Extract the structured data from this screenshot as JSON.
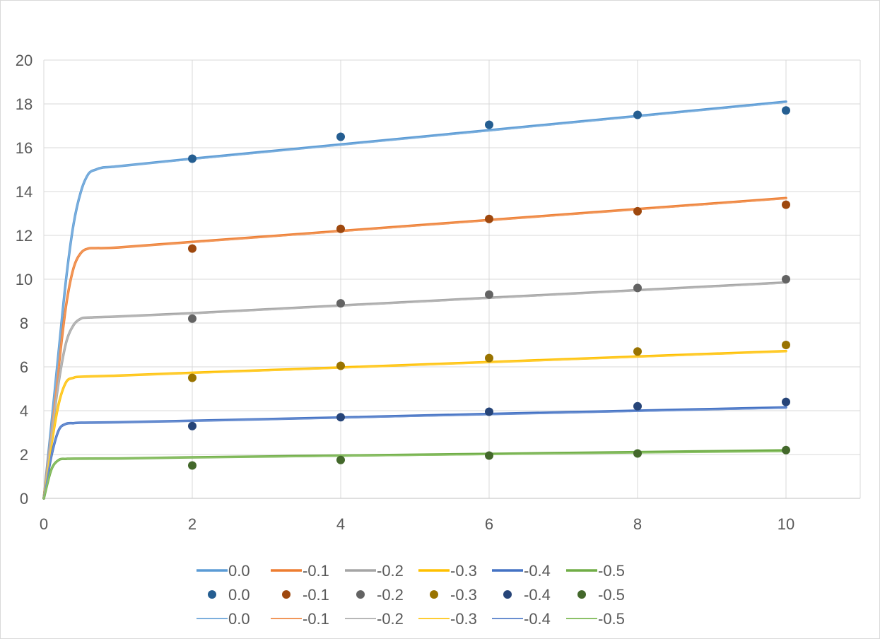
{
  "chart_data": {
    "type": "line",
    "title": "",
    "xlabel": "",
    "ylabel": "",
    "xlim": [
      0,
      11
    ],
    "ylim": [
      0,
      20
    ],
    "x_ticks": [
      0,
      2,
      4,
      6,
      8,
      10
    ],
    "y_ticks": [
      0,
      2,
      4,
      6,
      8,
      10,
      12,
      14,
      16,
      18,
      20
    ],
    "x_tick_labels": [
      "0",
      "2",
      "4",
      "6",
      "8",
      "10"
    ],
    "y_tick_labels": [
      "0",
      "2",
      "4",
      "6",
      "8",
      "10",
      "12",
      "14",
      "16",
      "18",
      "20"
    ],
    "grid": true,
    "legend_placement": "bottom",
    "series": [
      {
        "name": "0.0",
        "kind": "thick-line",
        "color": "#5B9BD5",
        "x": [
          0,
          0.1,
          0.2,
          0.3,
          0.4,
          0.5,
          0.6,
          0.7,
          0.8,
          1,
          2,
          4,
          6,
          8,
          10
        ],
        "y": [
          0,
          3.3,
          6.7,
          10.0,
          12.5,
          14.0,
          14.8,
          15.0,
          15.1,
          15.15,
          15.5,
          16.15,
          16.8,
          17.45,
          18.1
        ]
      },
      {
        "name": "-0.1",
        "kind": "thick-line",
        "color": "#ED7D31",
        "x": [
          0,
          0.1,
          0.2,
          0.3,
          0.4,
          0.5,
          0.6,
          0.7,
          1,
          2,
          4,
          6,
          8,
          10
        ],
        "y": [
          0,
          3.0,
          6.0,
          8.8,
          10.5,
          11.2,
          11.4,
          11.42,
          11.45,
          11.7,
          12.2,
          12.7,
          13.2,
          13.7
        ]
      },
      {
        "name": "-0.2",
        "kind": "thick-line",
        "color": "#A5A5A5",
        "x": [
          0,
          0.1,
          0.2,
          0.3,
          0.4,
          0.5,
          0.6,
          1,
          2,
          4,
          6,
          8,
          10
        ],
        "y": [
          0,
          2.8,
          5.3,
          7.1,
          7.9,
          8.2,
          8.25,
          8.3,
          8.45,
          8.8,
          9.15,
          9.5,
          9.85
        ]
      },
      {
        "name": "-0.3",
        "kind": "thick-line",
        "color": "#FFC000",
        "x": [
          0,
          0.1,
          0.2,
          0.3,
          0.4,
          0.5,
          1,
          2,
          4,
          6,
          8,
          10
        ],
        "y": [
          0,
          2.4,
          4.3,
          5.3,
          5.5,
          5.55,
          5.6,
          5.73,
          5.97,
          6.22,
          6.47,
          6.72
        ]
      },
      {
        "name": "-0.4",
        "kind": "thick-line",
        "color": "#4472C4",
        "x": [
          0,
          0.1,
          0.2,
          0.3,
          0.4,
          0.5,
          1,
          2,
          4,
          6,
          8,
          10
        ],
        "y": [
          0,
          1.9,
          3.1,
          3.4,
          3.43,
          3.45,
          3.47,
          3.54,
          3.69,
          3.85,
          4.0,
          4.15
        ]
      },
      {
        "name": "-0.5",
        "kind": "thick-line",
        "color": "#70AD47",
        "x": [
          0,
          0.1,
          0.2,
          0.3,
          0.4,
          1,
          2,
          4,
          6,
          8,
          10
        ],
        "y": [
          0,
          1.3,
          1.75,
          1.8,
          1.81,
          1.82,
          1.87,
          1.95,
          2.03,
          2.11,
          2.19
        ]
      },
      {
        "name": "0.0",
        "kind": "scatter",
        "color": "#255E91",
        "x": [
          2,
          4,
          6,
          8,
          10
        ],
        "y": [
          15.5,
          16.5,
          17.05,
          17.5,
          17.7
        ]
      },
      {
        "name": "-0.1",
        "kind": "scatter",
        "color": "#9E480E",
        "x": [
          2,
          4,
          6,
          8,
          10
        ],
        "y": [
          11.4,
          12.3,
          12.75,
          13.1,
          13.4
        ]
      },
      {
        "name": "-0.2",
        "kind": "scatter",
        "color": "#636363",
        "x": [
          2,
          4,
          6,
          8,
          10
        ],
        "y": [
          8.2,
          8.9,
          9.3,
          9.6,
          10.0
        ]
      },
      {
        "name": "-0.3",
        "kind": "scatter",
        "color": "#997300",
        "x": [
          2,
          4,
          6,
          8,
          10
        ],
        "y": [
          5.5,
          6.05,
          6.4,
          6.7,
          7.0
        ]
      },
      {
        "name": "-0.4",
        "kind": "scatter",
        "color": "#264478",
        "x": [
          2,
          4,
          6,
          8,
          10
        ],
        "y": [
          3.3,
          3.7,
          3.95,
          4.2,
          4.4
        ]
      },
      {
        "name": "-0.5",
        "kind": "scatter",
        "color": "#43682B",
        "x": [
          2,
          4,
          6,
          8,
          10
        ],
        "y": [
          1.5,
          1.75,
          1.95,
          2.05,
          2.2
        ]
      },
      {
        "name": "0.0",
        "kind": "thin-line",
        "color": "#7CAFDD",
        "x": [
          0,
          0.1,
          0.2,
          0.3,
          0.4,
          0.5,
          0.6,
          0.7,
          0.8,
          1,
          2,
          4,
          6,
          8,
          10
        ],
        "y": [
          0,
          3.3,
          6.7,
          10.0,
          12.5,
          14.0,
          14.8,
          15.0,
          15.1,
          15.15,
          15.47,
          16.12,
          16.77,
          17.42,
          18.07
        ]
      },
      {
        "name": "-0.1",
        "kind": "thin-line",
        "color": "#F1975A",
        "x": [
          0,
          0.1,
          0.2,
          0.3,
          0.4,
          0.5,
          0.6,
          0.7,
          1,
          2,
          4,
          6,
          8,
          10
        ],
        "y": [
          0,
          3.0,
          6.0,
          8.8,
          10.5,
          11.2,
          11.4,
          11.42,
          11.45,
          11.68,
          12.18,
          12.68,
          13.18,
          13.68
        ]
      },
      {
        "name": "-0.2",
        "kind": "thin-line",
        "color": "#B7B7B7",
        "x": [
          0,
          0.1,
          0.2,
          0.3,
          0.4,
          0.5,
          0.6,
          1,
          2,
          4,
          6,
          8,
          10
        ],
        "y": [
          0,
          2.8,
          5.3,
          7.1,
          7.9,
          8.2,
          8.25,
          8.3,
          8.43,
          8.78,
          9.13,
          9.48,
          9.83
        ]
      },
      {
        "name": "-0.3",
        "kind": "thin-line",
        "color": "#FFCD33",
        "x": [
          0,
          0.1,
          0.2,
          0.3,
          0.4,
          0.5,
          1,
          2,
          4,
          6,
          8,
          10
        ],
        "y": [
          0,
          2.4,
          4.3,
          5.3,
          5.5,
          5.55,
          5.6,
          5.71,
          5.95,
          6.2,
          6.45,
          6.7
        ]
      },
      {
        "name": "-0.4",
        "kind": "thin-line",
        "color": "#698ED0",
        "x": [
          0,
          0.1,
          0.2,
          0.3,
          0.4,
          0.5,
          1,
          2,
          4,
          6,
          8,
          10
        ],
        "y": [
          0,
          1.9,
          3.1,
          3.4,
          3.43,
          3.45,
          3.47,
          3.53,
          3.67,
          3.82,
          3.97,
          4.12
        ]
      },
      {
        "name": "-0.5",
        "kind": "thin-line",
        "color": "#8CC168",
        "x": [
          0,
          0.1,
          0.2,
          0.3,
          0.4,
          1,
          2,
          4,
          6,
          8,
          10
        ],
        "y": [
          0,
          1.3,
          1.75,
          1.8,
          1.81,
          1.82,
          1.86,
          1.93,
          2.0,
          2.07,
          2.14
        ]
      }
    ]
  }
}
